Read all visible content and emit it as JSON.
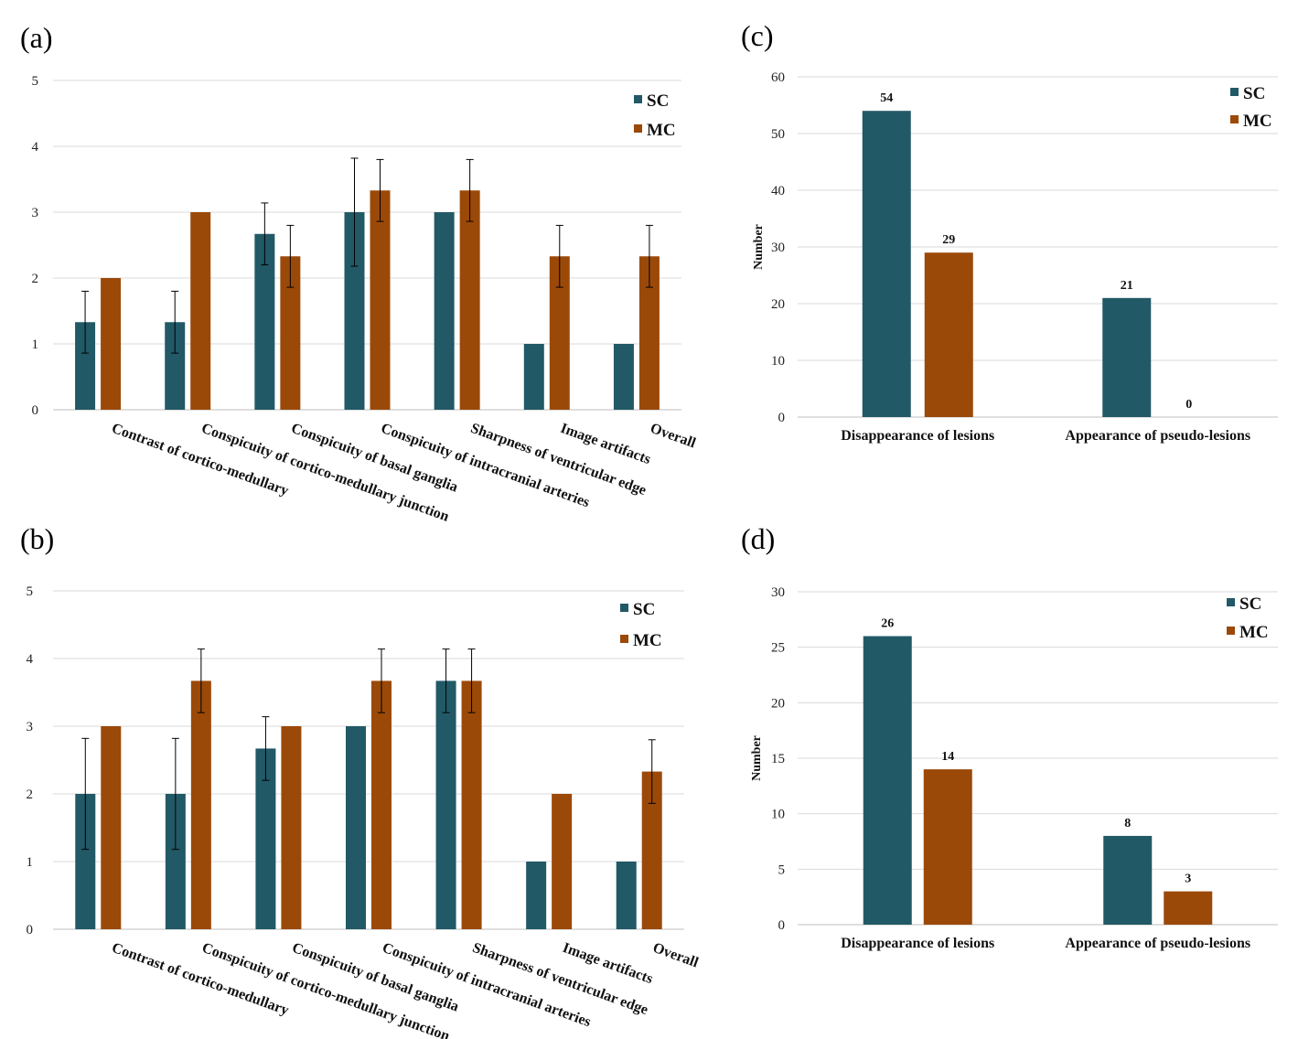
{
  "colors": {
    "sc": "#225966",
    "mc": "#9b4909"
  },
  "chart_data": [
    {
      "panel": "(a)",
      "type": "bar",
      "categories": [
        "Contrast of cortico-medullary",
        "Conspicuity of cortico-medullary junction",
        "Conspicuity of basal ganglia",
        "Conspicuity of intracranial arteries",
        "Sharpness of ventricular edge",
        "Image artifacts",
        "Overall"
      ],
      "series": [
        {
          "name": "SC",
          "values": [
            1.33,
            1.33,
            2.67,
            3.0,
            3.0,
            1.0,
            1.0
          ],
          "errors": [
            0.47,
            0.47,
            0.47,
            0.82,
            0,
            0,
            0
          ]
        },
        {
          "name": "MC",
          "values": [
            2.0,
            3.0,
            2.33,
            3.33,
            3.33,
            2.33,
            2.33
          ],
          "errors": [
            0,
            0,
            0.47,
            0.47,
            0.47,
            0.47,
            0.47
          ]
        }
      ],
      "yticks": [
        "0",
        "1",
        "2",
        "3",
        "4",
        "5"
      ],
      "ylim": [
        0,
        5
      ],
      "ylabel": "",
      "legend": "top-right",
      "grid": true
    },
    {
      "panel": "(b)",
      "type": "bar",
      "categories": [
        "Contrast of cortico-medullary",
        "Conspicuity of cortico-medullary junction",
        "Conspicuity of basal ganglia",
        "Conspicuity of intracranial arteries",
        "Sharpness of ventricular edge",
        "Image artifacts",
        "Overall"
      ],
      "series": [
        {
          "name": "SC",
          "values": [
            2.0,
            2.0,
            2.67,
            3.0,
            3.67,
            1.0,
            1.0
          ],
          "errors": [
            0.82,
            0.82,
            0.47,
            0,
            0.47,
            0,
            0
          ]
        },
        {
          "name": "MC",
          "values": [
            3.0,
            3.67,
            3.0,
            3.67,
            3.67,
            2.0,
            2.33
          ],
          "errors": [
            0,
            0.47,
            0,
            0.47,
            0.47,
            0,
            0.47
          ]
        }
      ],
      "yticks": [
        "0",
        "1",
        "2",
        "3",
        "4",
        "5"
      ],
      "ylim": [
        0,
        5
      ],
      "ylabel": "",
      "legend": "top-right",
      "grid": true
    },
    {
      "panel": "(c)",
      "type": "bar",
      "categories": [
        "Disappearance of lesions",
        "Appearance of pseudo-lesions"
      ],
      "series": [
        {
          "name": "SC",
          "values": [
            54,
            21
          ]
        },
        {
          "name": "MC",
          "values": [
            29,
            0
          ]
        }
      ],
      "value_labels": [
        [
          "54",
          "21"
        ],
        [
          "29",
          "0"
        ]
      ],
      "yticks": [
        "0",
        "10",
        "20",
        "30",
        "40",
        "50",
        "60"
      ],
      "ylim": [
        0,
        60
      ],
      "ylabel": "Number",
      "legend": "top-right",
      "grid": true
    },
    {
      "panel": "(d)",
      "type": "bar",
      "categories": [
        "Disappearance of lesions",
        "Appearance of pseudo-lesions"
      ],
      "series": [
        {
          "name": "SC",
          "values": [
            26,
            8
          ]
        },
        {
          "name": "MC",
          "values": [
            14,
            3
          ]
        }
      ],
      "value_labels": [
        [
          "26",
          "8"
        ],
        [
          "14",
          "3"
        ]
      ],
      "yticks": [
        "0",
        "5",
        "10",
        "15",
        "20",
        "25",
        "30"
      ],
      "ylim": [
        0,
        30
      ],
      "ylabel": "Number",
      "legend": "top-right",
      "grid": true
    }
  ]
}
